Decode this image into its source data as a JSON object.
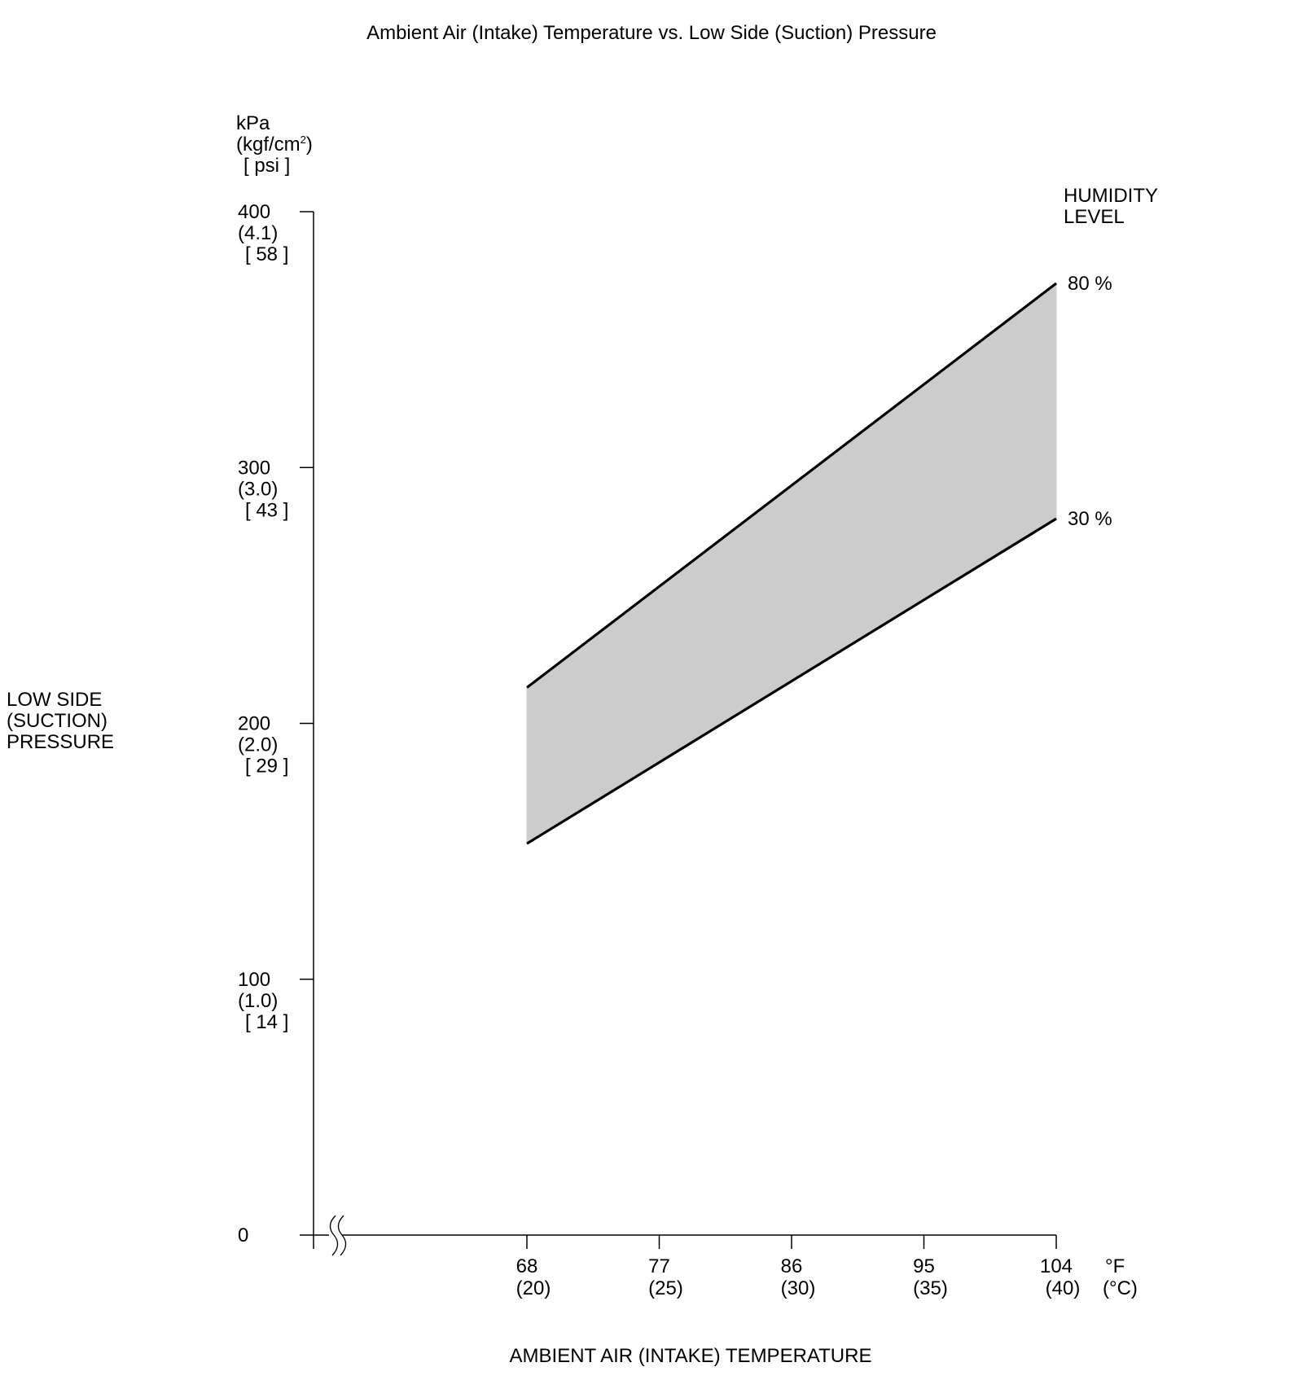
{
  "chart_data": {
    "type": "area",
    "title": "Ambient Air (Intake) Temperature vs. Low Side (Suction) Pressure",
    "xlabel": "AMBIENT AIR (INTAKE) TEMPERATURE",
    "ylabel": [
      "LOW SIDE",
      "(SUCTION)",
      "PRESSURE"
    ],
    "y_units": [
      "kPa",
      "(kgf/cm",
      ")",
      "[ psi ]"
    ],
    "y_units_superscript": "2",
    "x_units": [
      "°F",
      "(°C)"
    ],
    "ylim": [
      0,
      400
    ],
    "y_break_on_x_axis": true,
    "yticks": [
      {
        "value": 0,
        "labels": [
          "0"
        ]
      },
      {
        "value": 100,
        "labels": [
          "100",
          "(1.0)",
          "[ 14 ]"
        ]
      },
      {
        "value": 200,
        "labels": [
          "200",
          "(2.0)",
          "[ 29 ]"
        ]
      },
      {
        "value": 300,
        "labels": [
          "300",
          "(3.0)",
          "[ 43 ]"
        ]
      },
      {
        "value": 400,
        "labels": [
          "400",
          "(4.1)",
          "[ 58 ]"
        ]
      }
    ],
    "xticks": [
      {
        "value": 68,
        "labels": [
          "68",
          "(20)"
        ]
      },
      {
        "value": 77,
        "labels": [
          "77",
          "(25)"
        ]
      },
      {
        "value": 86,
        "labels": [
          "86",
          "(30)"
        ]
      },
      {
        "value": 95,
        "labels": [
          "95",
          "(35)"
        ]
      },
      {
        "value": 104,
        "labels": [
          "104",
          "(40)"
        ]
      }
    ],
    "legend_title": [
      "HUMIDITY",
      "LEVEL"
    ],
    "series": [
      {
        "name": "80 %",
        "x": [
          68,
          104
        ],
        "y": [
          214,
          372
        ]
      },
      {
        "name": "30 %",
        "x": [
          68,
          104
        ],
        "y": [
          153,
          280
        ]
      }
    ],
    "fill_between": {
      "upper": "80 %",
      "lower": "30 %"
    },
    "colors": {
      "fill": "#cccccc",
      "line": "#000000",
      "axis": "#000000"
    }
  }
}
